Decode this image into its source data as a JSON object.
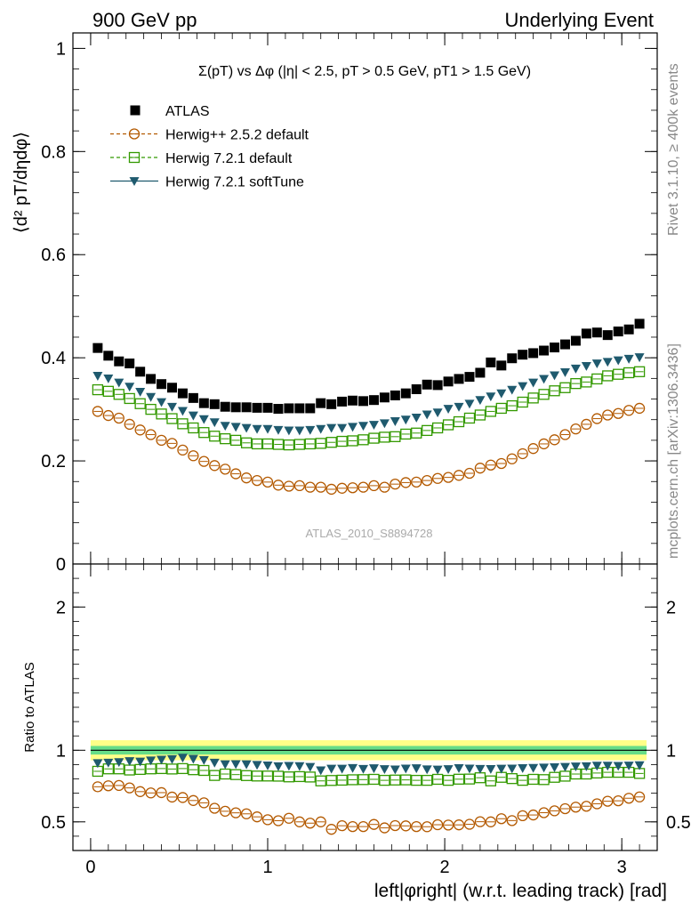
{
  "header": {
    "left": "900 GeV pp",
    "right": "Underlying Event"
  },
  "side_text": {
    "rivet": "Rivet 3.1.10, ≥ 400k events",
    "mcplots": "mcplots.cern.ch [arXiv:1306.3436]"
  },
  "chart_data": [
    {
      "type": "scatter",
      "title": "Σ(pT) vs Δφ (|η| < 2.5, pT > 0.5 GeV, pT1 > 1.5 GeV)",
      "ylabel": "⟨d² pT/dηdφ⟩",
      "xlabel": "left|φright| (w.r.t. leading track) [rad]",
      "analysis_label": "ATLAS_2010_S8894728",
      "xlim": [
        -0.1,
        3.2
      ],
      "ylim": [
        0,
        1.03
      ],
      "x_ticks": [
        "0",
        "1",
        "2",
        "3"
      ],
      "y_ticks": [
        "0",
        "0.2",
        "0.4",
        "0.6",
        "0.8",
        "1"
      ],
      "legend_position": "top-left",
      "x": [
        0.04,
        0.1,
        0.16,
        0.22,
        0.28,
        0.34,
        0.4,
        0.46,
        0.52,
        0.58,
        0.64,
        0.7,
        0.76,
        0.82,
        0.88,
        0.94,
        1.0,
        1.06,
        1.12,
        1.18,
        1.24,
        1.3,
        1.36,
        1.42,
        1.48,
        1.54,
        1.6,
        1.66,
        1.72,
        1.78,
        1.84,
        1.9,
        1.96,
        2.02,
        2.08,
        2.14,
        2.2,
        2.26,
        2.32,
        2.38,
        2.44,
        2.5,
        2.56,
        2.62,
        2.68,
        2.74,
        2.8,
        2.86,
        2.92,
        2.98,
        3.04,
        3.1
      ],
      "series": [
        {
          "name": "ATLAS",
          "marker": "filled-square",
          "color": "#000000",
          "values": [
            0.419,
            0.404,
            0.393,
            0.389,
            0.373,
            0.359,
            0.349,
            0.342,
            0.331,
            0.322,
            0.312,
            0.31,
            0.305,
            0.304,
            0.304,
            0.303,
            0.303,
            0.301,
            0.302,
            0.302,
            0.302,
            0.312,
            0.31,
            0.315,
            0.317,
            0.316,
            0.318,
            0.323,
            0.327,
            0.331,
            0.339,
            0.348,
            0.347,
            0.354,
            0.359,
            0.363,
            0.371,
            0.391,
            0.385,
            0.399,
            0.406,
            0.409,
            0.414,
            0.42,
            0.426,
            0.433,
            0.447,
            0.449,
            0.444,
            0.451,
            0.455,
            0.466
          ]
        },
        {
          "name": "Herwig++ 2.5.2 default",
          "marker": "open-circle",
          "color": "#b35900",
          "values": [
            0.296,
            0.288,
            0.283,
            0.271,
            0.26,
            0.251,
            0.24,
            0.234,
            0.221,
            0.21,
            0.199,
            0.191,
            0.184,
            0.175,
            0.167,
            0.162,
            0.159,
            0.153,
            0.151,
            0.152,
            0.149,
            0.149,
            0.145,
            0.147,
            0.148,
            0.149,
            0.152,
            0.149,
            0.155,
            0.158,
            0.159,
            0.162,
            0.166,
            0.168,
            0.172,
            0.176,
            0.186,
            0.192,
            0.195,
            0.204,
            0.214,
            0.224,
            0.233,
            0.241,
            0.251,
            0.262,
            0.271,
            0.282,
            0.289,
            0.292,
            0.298,
            0.302
          ]
        },
        {
          "name": "Herwig 7.2.1 default",
          "marker": "open-square",
          "color": "#339900",
          "values": [
            0.338,
            0.335,
            0.329,
            0.321,
            0.311,
            0.3,
            0.291,
            0.282,
            0.272,
            0.264,
            0.255,
            0.248,
            0.243,
            0.24,
            0.235,
            0.233,
            0.233,
            0.232,
            0.231,
            0.232,
            0.233,
            0.234,
            0.236,
            0.238,
            0.239,
            0.241,
            0.244,
            0.246,
            0.247,
            0.252,
            0.254,
            0.259,
            0.264,
            0.27,
            0.276,
            0.283,
            0.289,
            0.296,
            0.302,
            0.307,
            0.314,
            0.322,
            0.329,
            0.336,
            0.342,
            0.35,
            0.353,
            0.359,
            0.365,
            0.368,
            0.371,
            0.373
          ]
        },
        {
          "name": "Herwig 7.2.1 softTune",
          "marker": "filled-triangle-down",
          "color": "#1f5a6e",
          "values": [
            0.365,
            0.36,
            0.352,
            0.344,
            0.334,
            0.324,
            0.314,
            0.305,
            0.297,
            0.288,
            0.281,
            0.275,
            0.268,
            0.266,
            0.264,
            0.262,
            0.262,
            0.26,
            0.259,
            0.259,
            0.26,
            0.262,
            0.264,
            0.264,
            0.266,
            0.268,
            0.27,
            0.273,
            0.277,
            0.28,
            0.284,
            0.29,
            0.294,
            0.301,
            0.305,
            0.311,
            0.318,
            0.325,
            0.331,
            0.338,
            0.345,
            0.352,
            0.359,
            0.366,
            0.372,
            0.379,
            0.384,
            0.389,
            0.392,
            0.395,
            0.398,
            0.401
          ]
        }
      ]
    },
    {
      "type": "scatter",
      "ylabel": "Ratio to ATLAS",
      "xlabel": "left|φright| (w.r.t. leading track) [rad]",
      "xlim": [
        -0.1,
        3.2
      ],
      "ylim": [
        0.3,
        2.3
      ],
      "x_ticks": [
        "0",
        "1",
        "2",
        "3"
      ],
      "y_ticks": [
        "0.5",
        "1",
        "2"
      ],
      "reference_line": 1.0,
      "uncertainty_bands": {
        "inner": [
          0.97,
          1.03
        ],
        "outer": [
          0.93,
          1.07
        ],
        "inner_color": "#66dd88",
        "outer_color": "#ffff88"
      },
      "x": [
        0.04,
        0.1,
        0.16,
        0.22,
        0.28,
        0.34,
        0.4,
        0.46,
        0.52,
        0.58,
        0.64,
        0.7,
        0.76,
        0.82,
        0.88,
        0.94,
        1.0,
        1.06,
        1.12,
        1.18,
        1.24,
        1.3,
        1.36,
        1.42,
        1.48,
        1.54,
        1.6,
        1.66,
        1.72,
        1.78,
        1.84,
        1.9,
        1.96,
        2.02,
        2.08,
        2.14,
        2.2,
        2.26,
        2.32,
        2.38,
        2.44,
        2.5,
        2.56,
        2.62,
        2.68,
        2.74,
        2.8,
        2.86,
        2.92,
        2.98,
        3.04,
        3.1
      ],
      "series": [
        {
          "name": "Herwig++ 2.5.2 default",
          "marker": "open-circle",
          "color": "#b35900",
          "values": [
            0.745,
            0.752,
            0.754,
            0.737,
            0.711,
            0.702,
            0.704,
            0.673,
            0.67,
            0.649,
            0.633,
            0.595,
            0.574,
            0.563,
            0.556,
            0.535,
            0.515,
            0.508,
            0.525,
            0.5,
            0.491,
            0.5,
            0.448,
            0.473,
            0.467,
            0.467,
            0.482,
            0.458,
            0.474,
            0.472,
            0.467,
            0.466,
            0.48,
            0.478,
            0.479,
            0.483,
            0.501,
            0.5,
            0.522,
            0.509,
            0.543,
            0.548,
            0.564,
            0.577,
            0.592,
            0.603,
            0.609,
            0.626,
            0.644,
            0.647,
            0.665,
            0.674
          ]
        },
        {
          "name": "Herwig 7.2.1 default",
          "marker": "open-square",
          "color": "#339900",
          "values": [
            0.853,
            0.87,
            0.87,
            0.862,
            0.866,
            0.87,
            0.872,
            0.869,
            0.872,
            0.864,
            0.859,
            0.824,
            0.834,
            0.83,
            0.823,
            0.82,
            0.82,
            0.819,
            0.814,
            0.816,
            0.813,
            0.786,
            0.789,
            0.791,
            0.794,
            0.795,
            0.797,
            0.79,
            0.792,
            0.793,
            0.79,
            0.79,
            0.797,
            0.79,
            0.798,
            0.799,
            0.808,
            0.786,
            0.811,
            0.802,
            0.79,
            0.797,
            0.795,
            0.811,
            0.819,
            0.834,
            0.834,
            0.841,
            0.846,
            0.846,
            0.846,
            0.838
          ]
        },
        {
          "name": "Herwig 7.2.1 softTune",
          "marker": "filled-triangle-down",
          "color": "#1f5a6e",
          "values": [
            0.91,
            0.913,
            0.917,
            0.924,
            0.921,
            0.929,
            0.934,
            0.938,
            0.948,
            0.94,
            0.932,
            0.913,
            0.902,
            0.903,
            0.902,
            0.898,
            0.894,
            0.888,
            0.891,
            0.889,
            0.884,
            0.86,
            0.871,
            0.871,
            0.876,
            0.87,
            0.874,
            0.868,
            0.866,
            0.872,
            0.874,
            0.867,
            0.865,
            0.868,
            0.875,
            0.872,
            0.87,
            0.869,
            0.871,
            0.872,
            0.875,
            0.877,
            0.879,
            0.881,
            0.884,
            0.887,
            0.888,
            0.892,
            0.892,
            0.891,
            0.893,
            0.895
          ]
        }
      ]
    }
  ]
}
